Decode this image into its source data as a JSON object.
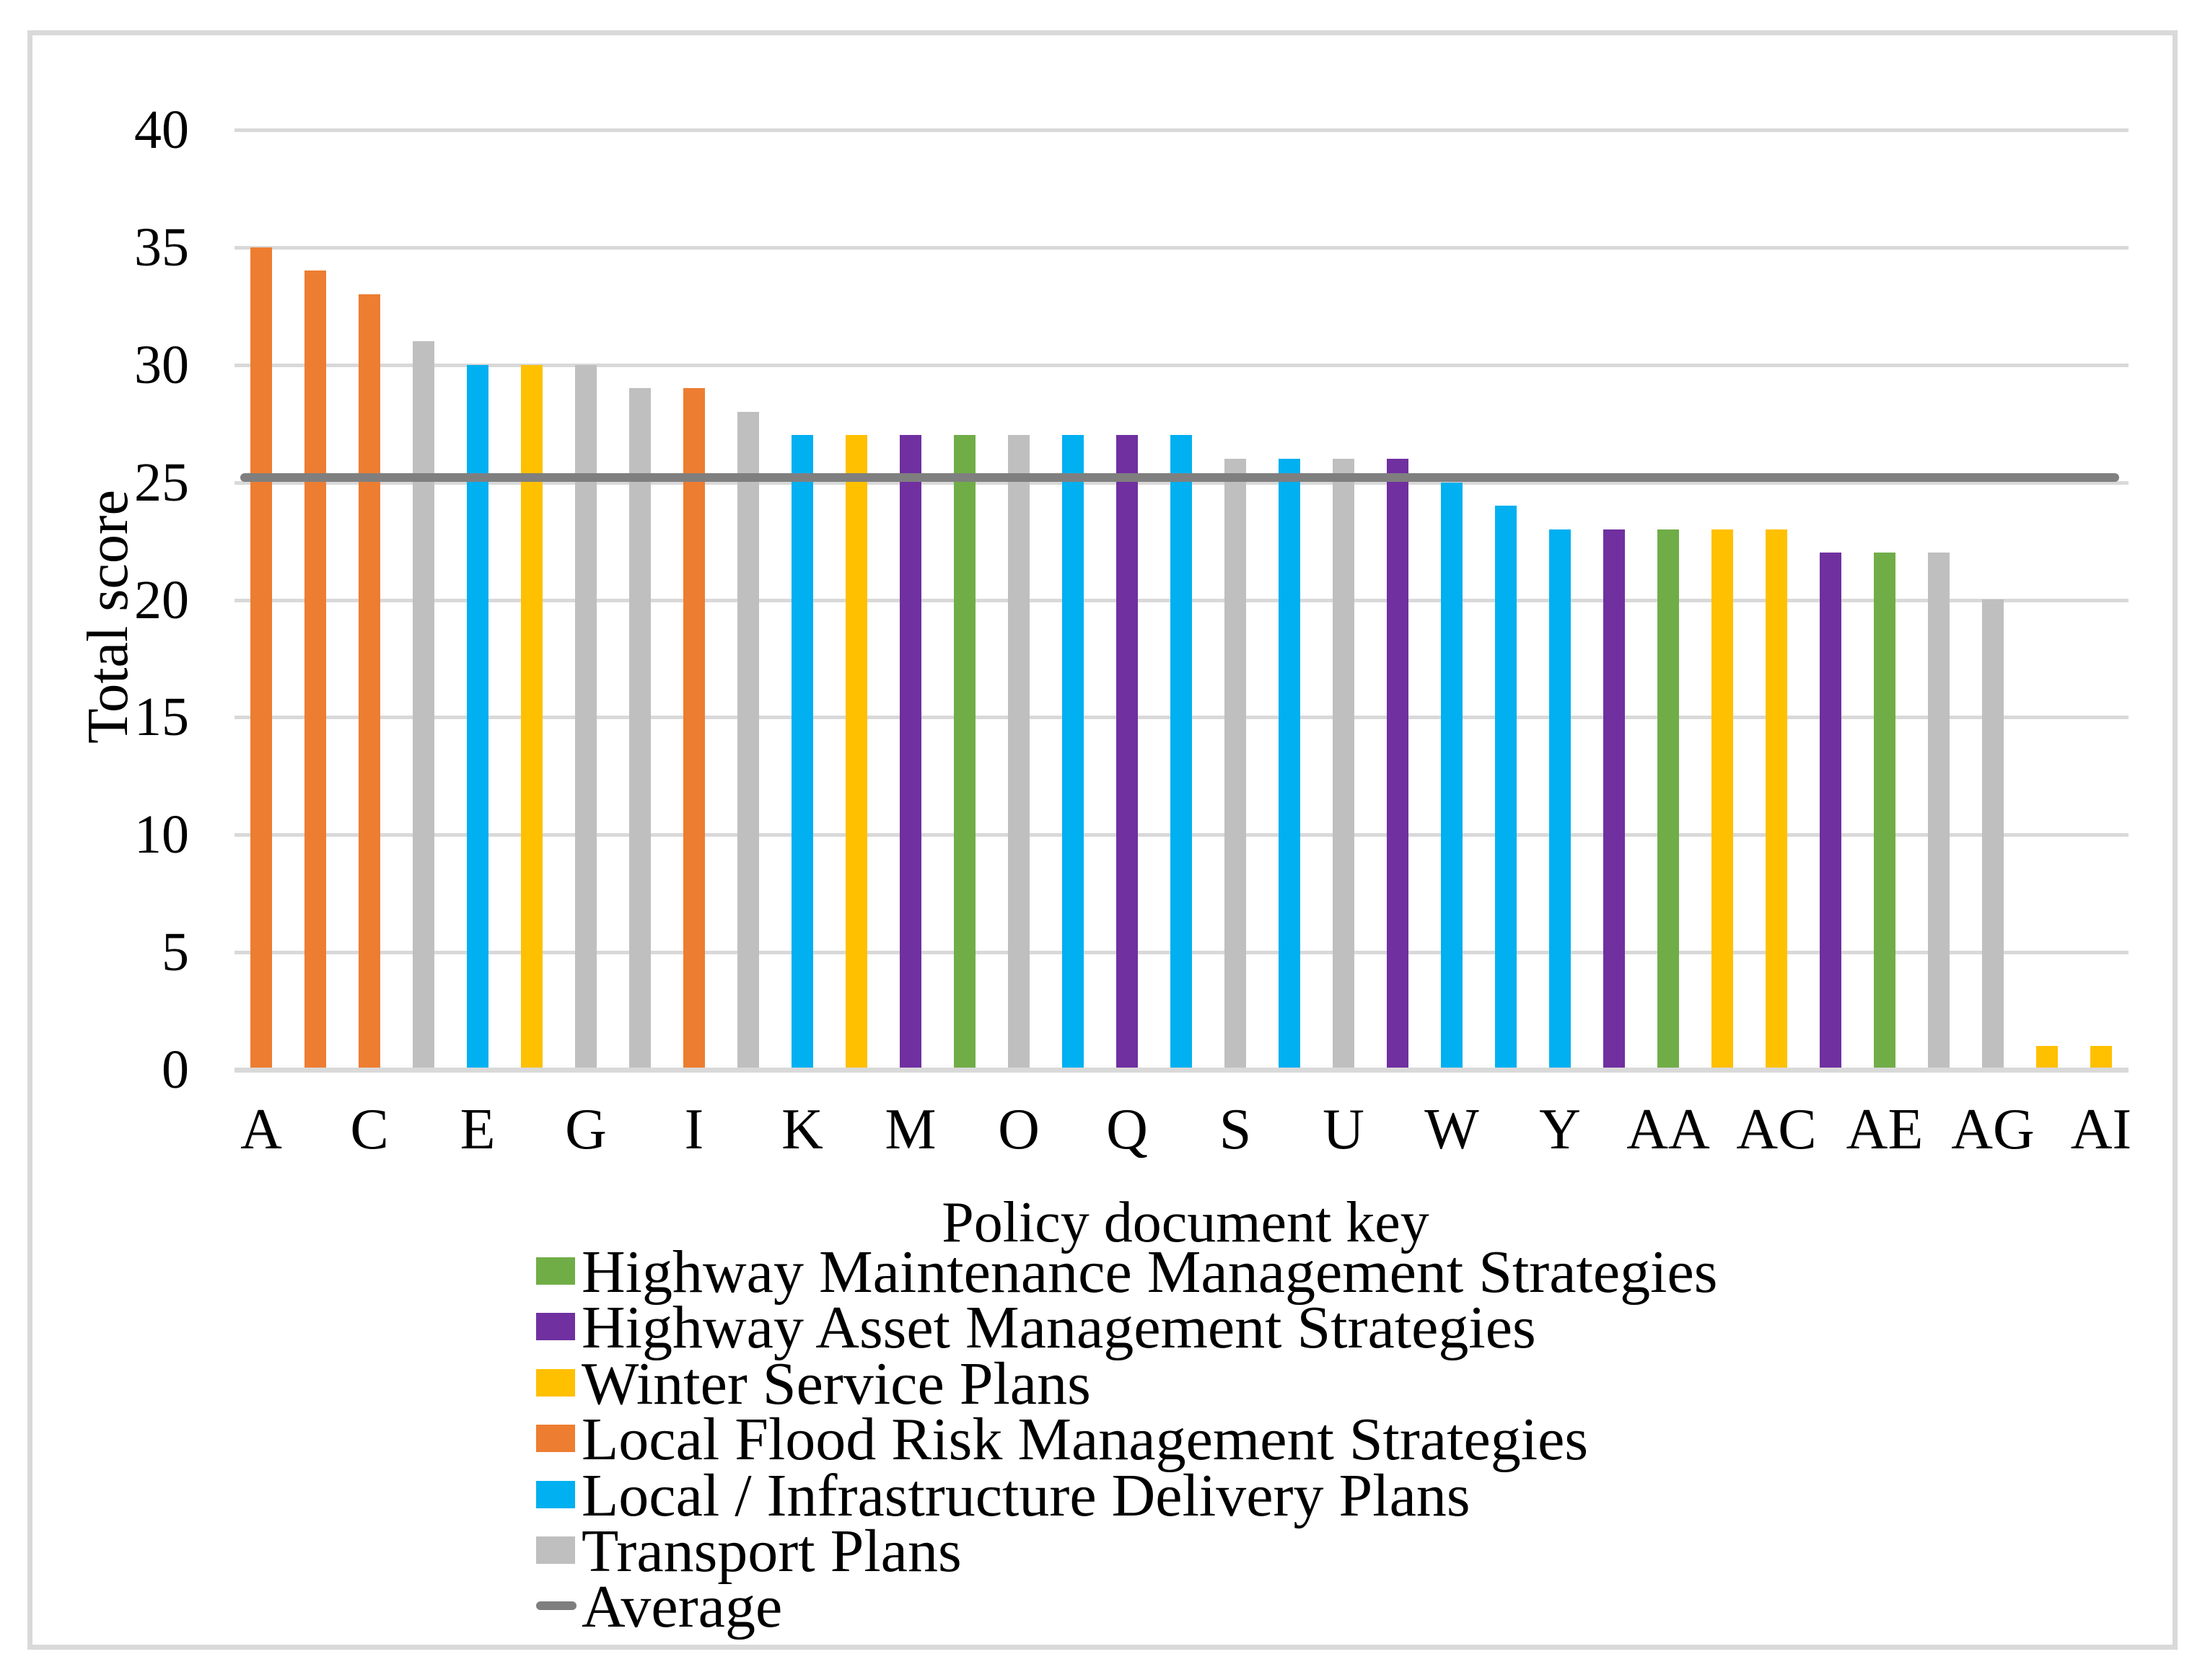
{
  "chart_data": {
    "type": "bar",
    "title": "",
    "xlabel": "Policy document key",
    "ylabel": "Total score",
    "ylim": [
      0,
      40
    ],
    "ytick_interval": 5,
    "ytick_labels": [
      "0",
      "5",
      "10",
      "15",
      "20",
      "25",
      "30",
      "35",
      "40"
    ],
    "xtick_labels_shown": [
      "A",
      "C",
      "E",
      "G",
      "I",
      "K",
      "M",
      "O",
      "Q",
      "S",
      "U",
      "W",
      "Y",
      "AA",
      "AC",
      "AE",
      "AG",
      "AI"
    ],
    "grid": true,
    "legend_position": "bottom",
    "colors": {
      "Highway Maintenance Management Strategies": "#70AD47",
      "Highway Asset Management Strategies": "#7030A0",
      "Winter Service Plans": "#FFC000",
      "Local Flood Risk Management Strategies": "#ED7D31",
      "Local / Infrastructure Delivery Plans": "#00B0F0",
      "Transport Plans": "#BFBFBF",
      "grid_color": "#D9D9D9",
      "average_color": "#7F7F7F"
    },
    "bars": [
      {
        "key": "A",
        "value": 35,
        "category": "Local Flood Risk Management Strategies"
      },
      {
        "key": "B",
        "value": 34,
        "category": "Local Flood Risk Management Strategies"
      },
      {
        "key": "C",
        "value": 33,
        "category": "Local Flood Risk Management Strategies"
      },
      {
        "key": "D",
        "value": 31,
        "category": "Transport Plans"
      },
      {
        "key": "E",
        "value": 30,
        "category": "Local / Infrastructure Delivery Plans"
      },
      {
        "key": "F",
        "value": 30,
        "category": "Winter Service Plans"
      },
      {
        "key": "G",
        "value": 30,
        "category": "Transport Plans"
      },
      {
        "key": "H",
        "value": 29,
        "category": "Transport Plans"
      },
      {
        "key": "I",
        "value": 29,
        "category": "Local Flood Risk Management Strategies"
      },
      {
        "key": "J",
        "value": 28,
        "category": "Transport Plans"
      },
      {
        "key": "K",
        "value": 27,
        "category": "Local / Infrastructure Delivery Plans"
      },
      {
        "key": "L",
        "value": 27,
        "category": "Winter Service Plans"
      },
      {
        "key": "M",
        "value": 27,
        "category": "Highway Asset Management Strategies"
      },
      {
        "key": "N",
        "value": 27,
        "category": "Highway Maintenance Management Strategies"
      },
      {
        "key": "O",
        "value": 27,
        "category": "Transport Plans"
      },
      {
        "key": "P",
        "value": 27,
        "category": "Local / Infrastructure Delivery Plans"
      },
      {
        "key": "Q",
        "value": 27,
        "category": "Highway Asset Management Strategies"
      },
      {
        "key": "R",
        "value": 27,
        "category": "Local / Infrastructure Delivery Plans"
      },
      {
        "key": "S",
        "value": 26,
        "category": "Transport Plans"
      },
      {
        "key": "T",
        "value": 26,
        "category": "Local / Infrastructure Delivery Plans"
      },
      {
        "key": "U",
        "value": 26,
        "category": "Transport Plans"
      },
      {
        "key": "V",
        "value": 26,
        "category": "Highway Asset Management Strategies"
      },
      {
        "key": "W",
        "value": 25,
        "category": "Local / Infrastructure Delivery Plans"
      },
      {
        "key": "X",
        "value": 24,
        "category": "Local / Infrastructure Delivery Plans"
      },
      {
        "key": "Y",
        "value": 23,
        "category": "Local / Infrastructure Delivery Plans"
      },
      {
        "key": "Z",
        "value": 23,
        "category": "Highway Asset Management Strategies"
      },
      {
        "key": "AA",
        "value": 23,
        "category": "Highway Maintenance Management Strategies"
      },
      {
        "key": "AB",
        "value": 23,
        "category": "Winter Service Plans"
      },
      {
        "key": "AC",
        "value": 23,
        "category": "Winter Service Plans"
      },
      {
        "key": "AD",
        "value": 22,
        "category": "Highway Asset Management Strategies"
      },
      {
        "key": "AE",
        "value": 22,
        "category": "Highway Maintenance Management Strategies"
      },
      {
        "key": "AF",
        "value": 22,
        "category": "Transport Plans"
      },
      {
        "key": "AG",
        "value": 20,
        "category": "Transport Plans"
      },
      {
        "key": "AH",
        "value": 1,
        "category": "Winter Service Plans"
      },
      {
        "key": "AI",
        "value": 1,
        "category": "Winter Service Plans"
      }
    ],
    "average_line": {
      "label": "Average",
      "value": 25.2,
      "color": "#7F7F7F"
    },
    "legend": [
      {
        "label": "Highway Maintenance Management Strategies",
        "color": "#70AD47",
        "marker": "swatch"
      },
      {
        "label": "Highway Asset Management Strategies",
        "color": "#7030A0",
        "marker": "swatch"
      },
      {
        "label": "Winter Service Plans",
        "color": "#FFC000",
        "marker": "swatch"
      },
      {
        "label": "Local Flood Risk Management Strategies",
        "color": "#ED7D31",
        "marker": "swatch"
      },
      {
        "label": "Local / Infrastructure Delivery Plans",
        "color": "#00B0F0",
        "marker": "swatch"
      },
      {
        "label": "Transport Plans",
        "color": "#BFBFBF",
        "marker": "swatch"
      },
      {
        "label": "Average",
        "color": "#7F7F7F",
        "marker": "line"
      }
    ]
  }
}
